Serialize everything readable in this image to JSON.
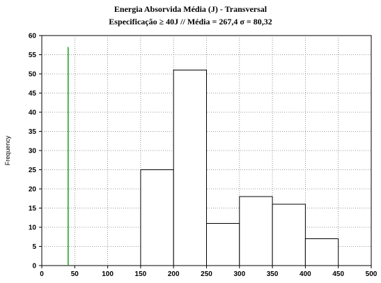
{
  "chart_data": {
    "type": "bar",
    "title": "Energia Absorvida Média (J) - Transversal",
    "subtitle": "Especificação ≥ 40J  // Média = 267,4    σ = 80,32",
    "xlabel": "",
    "ylabel": "Frequency",
    "xlim": [
      0,
      500
    ],
    "ylim": [
      0,
      60
    ],
    "x_ticks": [
      0,
      50,
      100,
      150,
      200,
      250,
      300,
      350,
      400,
      450,
      500
    ],
    "y_ticks": [
      0,
      5,
      10,
      15,
      20,
      25,
      30,
      35,
      40,
      45,
      50,
      55,
      60
    ],
    "bins": [
      {
        "from": 150,
        "to": 200,
        "value": 25
      },
      {
        "from": 200,
        "to": 250,
        "value": 51
      },
      {
        "from": 250,
        "to": 300,
        "value": 11
      },
      {
        "from": 300,
        "to": 350,
        "value": 18
      },
      {
        "from": 350,
        "to": 400,
        "value": 16
      },
      {
        "from": 400,
        "to": 450,
        "value": 7
      }
    ],
    "spec_line": {
      "x": 40,
      "y_top": 57,
      "color": "#1a9e1a"
    },
    "grid": true,
    "bar_fill": "#ffffff",
    "bar_stroke": "#000000"
  }
}
